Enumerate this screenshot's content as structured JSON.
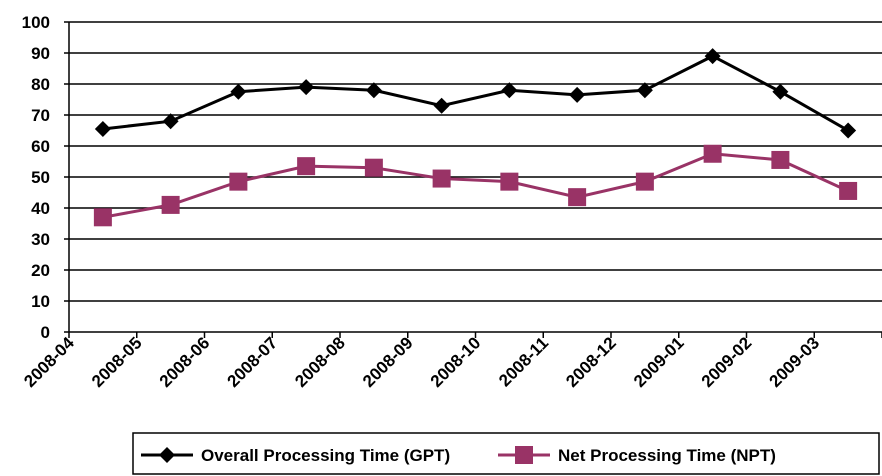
{
  "chart_data": {
    "type": "line",
    "categories": [
      "2008-04",
      "2008-05",
      "2008-06",
      "2008-07",
      "2008-08",
      "2008-09",
      "2008-10",
      "2008-11",
      "2008-12",
      "2009-01",
      "2009-02",
      "2009-03"
    ],
    "series": [
      {
        "name": "Overall Processing Time (GPT)",
        "color": "#000000",
        "marker": "diamond",
        "values": [
          65.5,
          68,
          77.5,
          79,
          78,
          73,
          78,
          76.5,
          78,
          89,
          77.5,
          65
        ]
      },
      {
        "name": "Net Processing Time (NPT)",
        "color": "#993366",
        "marker": "square",
        "values": [
          37,
          41,
          48.5,
          53.5,
          53,
          49.5,
          48.5,
          43.5,
          48.5,
          57.5,
          55.5,
          45.5
        ]
      }
    ],
    "ylim": [
      0,
      100
    ],
    "yticks": [
      "0",
      "10",
      "20",
      "30",
      "40",
      "50",
      "60",
      "70",
      "80",
      "90",
      "100"
    ],
    "grid": true,
    "legend": "bottom"
  }
}
